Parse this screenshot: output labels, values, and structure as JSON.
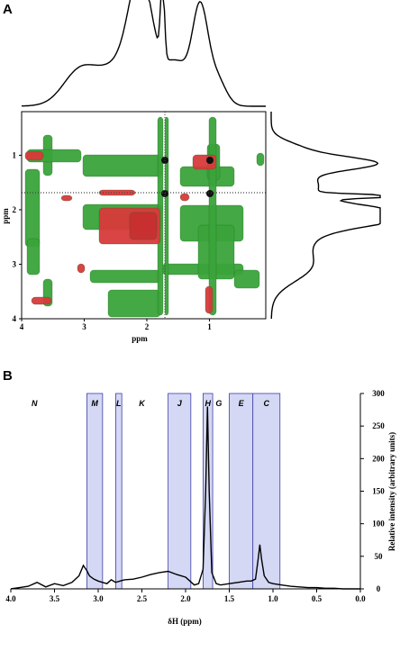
{
  "panels": {
    "a_label": "A",
    "b_label": "B"
  },
  "colors": {
    "positive_contour": "#3aa43a",
    "negative_contour": "#d83a3a",
    "region_fill": "#d5d8f4",
    "region_stroke": "#3c3fa8",
    "trace": "#000000"
  },
  "chart_data": [
    {
      "type": "heatmap",
      "title": "",
      "xlabel": "ppm",
      "ylabel": "ppm",
      "xlim": [
        4,
        0.1
      ],
      "ylim": [
        0.2,
        4
      ],
      "x_ticks": [
        "4",
        "3",
        "2",
        "1"
      ],
      "y_ticks": [
        "1",
        "2",
        "3",
        "4"
      ],
      "contour_colors": [
        "green (positive)",
        "red (negative)"
      ],
      "projection_peaks_ppm": [
        2.1,
        1.75,
        1.15
      ],
      "notes_visible": "2D correlation map with 1D projection traces on top and right"
    },
    {
      "type": "line",
      "title": "",
      "xlabel": "δH (ppm)",
      "ylabel": "Relative intensity (arbitrary units)",
      "xlim": [
        4.0,
        0.0
      ],
      "ylim": [
        0,
        300
      ],
      "x_ticks": [
        "4.0",
        "3.5",
        "3.0",
        "2.5",
        "2.0",
        "1.5",
        "1.0",
        "0.5",
        "0.0"
      ],
      "y_ticks": [
        "0",
        "50",
        "100",
        "150",
        "200",
        "250",
        "300"
      ],
      "series": [
        {
          "x": [
            4.0,
            3.9,
            3.8,
            3.7,
            3.6,
            3.5,
            3.4,
            3.3,
            3.22,
            3.17,
            3.13,
            3.1,
            3.05,
            3.0,
            2.95,
            2.9,
            2.85,
            2.8,
            2.75,
            2.7,
            2.6,
            2.5,
            2.4,
            2.3,
            2.2,
            2.1,
            2.0,
            1.95,
            1.9,
            1.85,
            1.8,
            1.77,
            1.75,
            1.73,
            1.7,
            1.65,
            1.6,
            1.5,
            1.4,
            1.3,
            1.25,
            1.2,
            1.17,
            1.15,
            1.13,
            1.1,
            1.05,
            1.0,
            0.9,
            0.8,
            0.7,
            0.6,
            0.5,
            0.4,
            0.3,
            0.2,
            0.1,
            0.0
          ],
          "y": [
            0,
            2,
            4,
            10,
            3,
            8,
            5,
            10,
            20,
            36,
            28,
            20,
            15,
            12,
            10,
            8,
            14,
            10,
            12,
            14,
            15,
            18,
            22,
            25,
            27,
            22,
            18,
            12,
            6,
            8,
            30,
            150,
            280,
            150,
            25,
            8,
            6,
            8,
            10,
            12,
            12,
            15,
            45,
            68,
            45,
            20,
            10,
            8,
            6,
            4,
            3,
            2,
            2,
            1,
            1,
            0,
            0,
            0
          ]
        }
      ],
      "regions": [
        {
          "label": "M",
          "from": 3.13,
          "to": 2.95
        },
        {
          "label": "L",
          "from": 2.8,
          "to": 2.73
        },
        {
          "label": "J",
          "from": 2.2,
          "to": 1.94
        },
        {
          "label": "H",
          "from": 1.8,
          "to": 1.69
        },
        {
          "label": "E",
          "from": 1.5,
          "to": 1.23
        },
        {
          "label": "C",
          "from": 1.23,
          "to": 0.92
        }
      ],
      "free_labels": [
        {
          "label": "N",
          "at": 3.73
        },
        {
          "label": "K",
          "at": 2.5
        },
        {
          "label": "G",
          "at": 1.62
        }
      ]
    }
  ]
}
